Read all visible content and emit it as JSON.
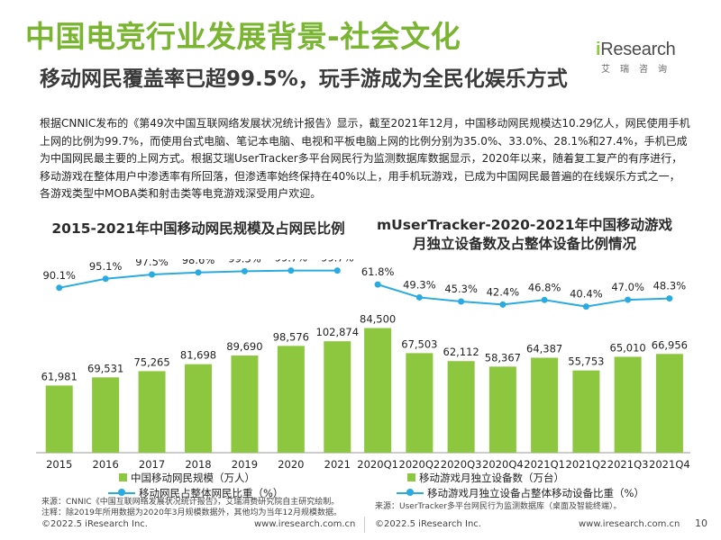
{
  "title": "中国电竞行业发展背景-社会文化",
  "subtitle": "移动网民覆盖率已超99.5%，玩手游成为全民化娱乐方式",
  "logo": {
    "brand_i": "i",
    "brand_rest": "Research",
    "sub": "艾瑞咨询"
  },
  "body_text": "根据CNNIC发布的《第49次中国互联网络发展状况统计报告》显示，截至2021年12月，中国移动网民规模达10.29亿人，网民使用手机上网的比例为99.7%，而使用台式电脑、笔记本电脑、电视和平板电脑上网的比例分别为35.0%、33.0%、28.1%和27.4%，手机已成为中国网民最主要的上网方式。根据艾瑞UserTracker多平台网民行为监测数据库数据显示，2020年以来，随着复工复产的有序进行，移动游戏在整体用户中渗透率有所回落，但渗透率始终保持在40%以上，用手机玩游戏，已成为中国网民最普遍的在线娱乐方式之一，各游戏类型中MOBA类和射击类等电竞游戏深受用户欢迎。",
  "colors": {
    "accent": "#7ab531",
    "bar": "#8dc63f",
    "line": "#29abe2"
  },
  "chart_data": [
    {
      "type": "bar",
      "title": "2015-2021年中国移动网民规模及占网民比例",
      "categories": [
        "2015",
        "2016",
        "2017",
        "2018",
        "2019",
        "2020",
        "2021"
      ],
      "series": [
        {
          "name": "中国移动网民规模（万人）",
          "type": "bar",
          "values": [
            61981,
            69531,
            75265,
            81698,
            89690,
            98576,
            102874
          ],
          "labels": [
            "61,981",
            "69,531",
            "75,265",
            "81,698",
            "89,690",
            "98,576",
            "102,874"
          ]
        },
        {
          "name": "移动网民占整体网民比重（%）",
          "type": "line",
          "values": [
            90.1,
            95.1,
            97.5,
            98.6,
            99.3,
            99.7,
            99.7
          ],
          "labels": [
            "90.1%",
            "95.1%",
            "97.5%",
            "98.6%",
            "99.3%",
            "99.7%",
            "99.7%"
          ]
        }
      ],
      "bar_range": [
        0,
        108000
      ],
      "line_range": [
        85,
        105
      ],
      "legend_position": "bottom",
      "grid": false,
      "source": [
        "来源：CNNIC《中国互联网络发展状况统计报告》，艾瑞消费研究院自主研究绘制。",
        "注释：除2019年所用数据为2020年3月规模数据外，其他均为当年12月规模数据。"
      ]
    },
    {
      "type": "bar",
      "title": "mUserTracker-2020-2021年中国移动游戏\n月独立设备数及占整体设备比例情况",
      "title_lines": [
        "mUserTracker-2020-2021年中国移动游戏",
        "月独立设备数及占整体设备比例情况"
      ],
      "categories": [
        "2020Q1",
        "2020Q2",
        "2020Q3",
        "2020Q4",
        "2021Q1",
        "2021Q2",
        "2021Q3",
        "2021Q4"
      ],
      "series": [
        {
          "name": "移动游戏月独立设备数（万台）",
          "type": "bar",
          "values": [
            84500,
            67503,
            62112,
            58367,
            64387,
            55753,
            65010,
            66956
          ],
          "labels": [
            "84,500",
            "67,503",
            "62,112",
            "58,367",
            "64,387",
            "55,753",
            "65,010",
            "66,956"
          ]
        },
        {
          "name": "移动游戏月独立设备占整体移动设备比重（%）",
          "type": "line",
          "values": [
            61.8,
            49.3,
            45.3,
            42.4,
            46.8,
            40.4,
            47.0,
            48.3
          ],
          "labels": [
            "61.8%",
            "49.3%",
            "45.3%",
            "42.4%",
            "46.8%",
            "40.4%",
            "47.0%",
            "48.3%"
          ]
        }
      ],
      "bar_range": [
        0,
        108000
      ],
      "line_range": [
        20,
        75
      ],
      "legend_position": "bottom",
      "grid": false,
      "source": [
        "来源：UserTracker多平台网民行为监测数据库（桌面及智能终端）。"
      ]
    }
  ],
  "footer": {
    "left_copyright": "©2022.5 iResearch Inc.",
    "left_url": "www.iresearch.com.cn",
    "right_copyright": "©2022.5 iResearch Inc.",
    "right_url": "www.iresearch.com.cn",
    "page_number": "10"
  }
}
